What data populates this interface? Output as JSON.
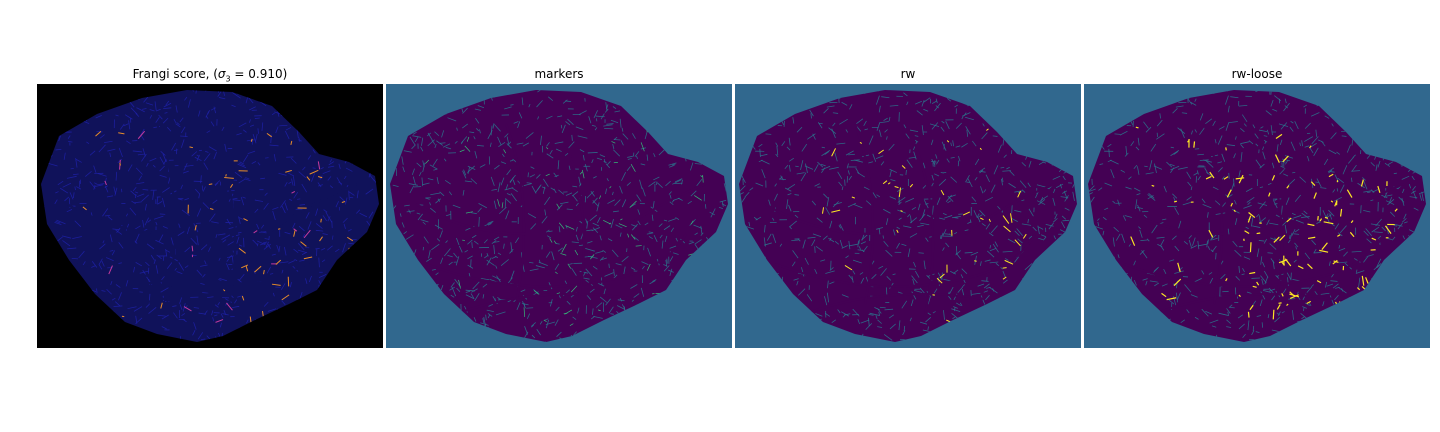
{
  "figure": {
    "panels": [
      {
        "title_prefix": "Frangi score, (",
        "title_sigma": "σ",
        "title_sub": "3",
        "title_eq": " = 0.910)",
        "background": "#000000",
        "mask_color": "#10125a",
        "vessel_color": "#1f22a8",
        "highlight_color": "#e88d2a",
        "hot_color": "#c43a9d"
      },
      {
        "title": "markers",
        "background": "#31688e",
        "mask_color": "#440154",
        "vessel_color": "#2a788e",
        "highlight_color": "#35b779"
      },
      {
        "title": "rw",
        "background": "#31688e",
        "mask_color": "#440154",
        "vessel_color": "#2a788e",
        "highlight_color": "#fde725"
      },
      {
        "title": "rw-loose",
        "background": "#31688e",
        "mask_color": "#440154",
        "vessel_color": "#2a788e",
        "highlight_color": "#fde725"
      }
    ]
  }
}
